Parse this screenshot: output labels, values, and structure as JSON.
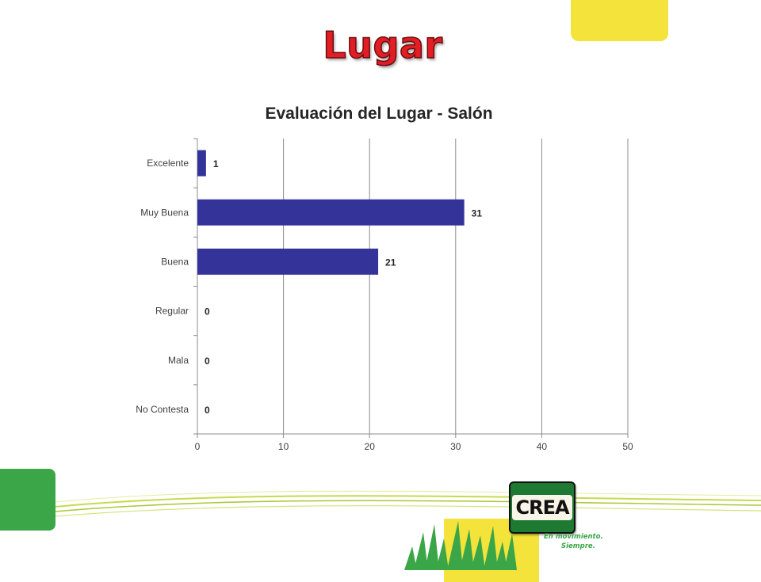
{
  "slide": {
    "title": "Lugar",
    "brand": {
      "logo_text": "CREA",
      "tagline_line1": "En movimiento.",
      "tagline_line2": "Siempre."
    },
    "colors": {
      "title_red": "#e31d24",
      "bar_blue": "#333399",
      "accent_yellow": "#f3e33a",
      "accent_green": "#3aa648"
    }
  },
  "chart_data": {
    "type": "bar",
    "orientation": "horizontal",
    "title": "Evaluación del Lugar - Salón",
    "categories": [
      "Excelente",
      "Muy Buena",
      "Buena",
      "Regular",
      "Mala",
      "No Contesta"
    ],
    "values": [
      1,
      31,
      21,
      0,
      0,
      0
    ],
    "data_labels": [
      "1",
      "31",
      "21",
      "0",
      "0",
      "0"
    ],
    "xlim": [
      0,
      50
    ],
    "xticks": [
      "0",
      "10",
      "20",
      "30",
      "40",
      "50"
    ],
    "grid": "vertical",
    "legend": "none",
    "bar_color": "#333399"
  }
}
